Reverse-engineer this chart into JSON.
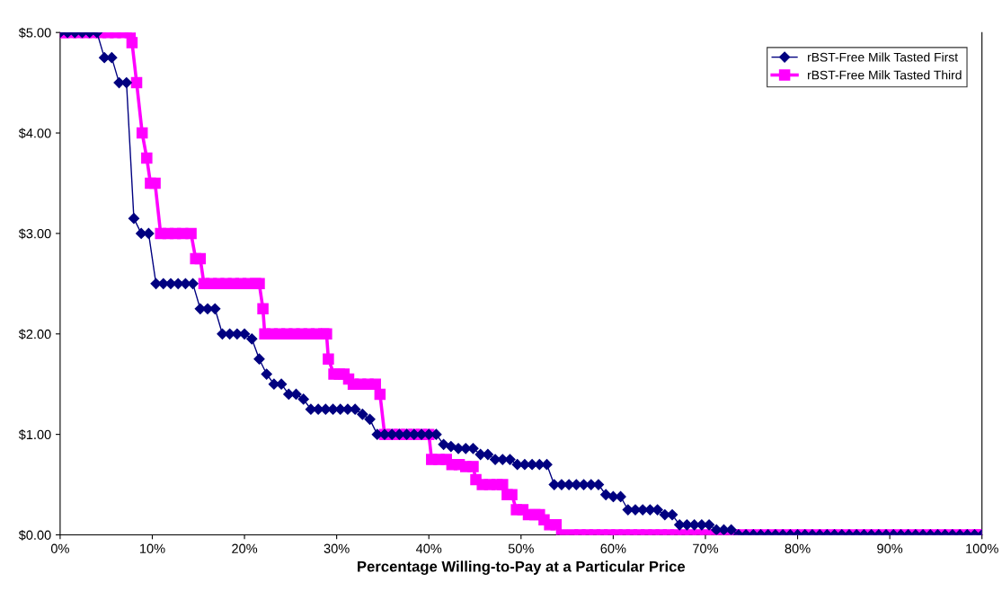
{
  "chart_data": {
    "type": "line",
    "xlabel": "Percentage Willing-to-Pay at a Particular Price",
    "xlim": [
      0,
      100
    ],
    "ylim": [
      0,
      5
    ],
    "xticks": [
      {
        "value": 0,
        "label": "0%"
      },
      {
        "value": 10,
        "label": "10%"
      },
      {
        "value": 20,
        "label": "20%"
      },
      {
        "value": 30,
        "label": "30%"
      },
      {
        "value": 40,
        "label": "40%"
      },
      {
        "value": 50,
        "label": "50%"
      },
      {
        "value": 60,
        "label": "60%"
      },
      {
        "value": 70,
        "label": "70%"
      },
      {
        "value": 80,
        "label": "80%"
      },
      {
        "value": 90,
        "label": "90%"
      },
      {
        "value": 100,
        "label": "100%"
      }
    ],
    "yticks": [
      {
        "value": 0,
        "label": "$0.00"
      },
      {
        "value": 1,
        "label": "$1.00"
      },
      {
        "value": 2,
        "label": "$2.00"
      },
      {
        "value": 3,
        "label": "$3.00"
      },
      {
        "value": 4,
        "label": "$4.00"
      },
      {
        "value": 5,
        "label": "$5.00"
      }
    ],
    "grid": false,
    "legend": "top right",
    "series": [
      {
        "name": "rBST-Free Milk Tasted First",
        "color": "#000080",
        "marker": "diamond",
        "x": [
          0,
          0.8,
          1.6,
          2.4,
          3.2,
          4,
          4.8,
          5.6,
          6.4,
          7.2,
          8,
          8.8,
          9.6,
          10.4,
          11.2,
          12,
          12.8,
          13.6,
          14.4,
          15.2,
          16,
          16.8,
          17.6,
          18.4,
          19.2,
          20,
          20.8,
          21.6,
          22.4,
          23.2,
          24,
          24.8,
          25.6,
          26.4,
          27.2,
          28,
          28.8,
          29.6,
          30.4,
          31.2,
          32,
          32.8,
          33.6,
          34.4,
          35.2,
          36,
          36.8,
          37.6,
          38.4,
          39.2,
          40,
          40.8,
          41.6,
          42.4,
          43.2,
          44,
          44.8,
          45.6,
          46.4,
          47.2,
          48,
          48.8,
          49.6,
          50.4,
          51.2,
          52,
          52.8,
          53.6,
          54.4,
          55.2,
          56,
          56.8,
          57.6,
          58.4,
          59.2,
          60,
          60.8,
          61.6,
          62.4,
          63.2,
          64,
          64.8,
          65.6,
          66.4,
          67.2,
          68,
          68.8,
          69.6,
          70.4,
          71.2,
          72,
          72.8,
          73.6,
          74.4,
          75.2,
          76,
          76.8,
          77.6,
          78.4,
          79.2,
          80,
          80.8,
          81.6,
          82.4,
          83.2,
          84,
          84.8,
          85.6,
          86.4,
          87.2,
          88,
          88.8,
          89.6,
          90.4,
          91.2,
          92,
          92.8,
          93.6,
          94.4,
          95.2,
          96,
          96.8,
          97.6,
          98.4,
          99.2,
          100
        ],
        "values": [
          5,
          5,
          5,
          5,
          5,
          5,
          4.75,
          4.75,
          4.5,
          4.5,
          3.15,
          3,
          3,
          2.5,
          2.5,
          2.5,
          2.5,
          2.5,
          2.5,
          2.25,
          2.25,
          2.25,
          2,
          2,
          2,
          2,
          1.95,
          1.75,
          1.6,
          1.5,
          1.5,
          1.4,
          1.4,
          1.35,
          1.25,
          1.25,
          1.25,
          1.25,
          1.25,
          1.25,
          1.25,
          1.2,
          1.15,
          1,
          1,
          1,
          1,
          1,
          1,
          1,
          1,
          1,
          0.9,
          0.88,
          0.86,
          0.86,
          0.86,
          0.8,
          0.8,
          0.75,
          0.75,
          0.75,
          0.7,
          0.7,
          0.7,
          0.7,
          0.7,
          0.5,
          0.5,
          0.5,
          0.5,
          0.5,
          0.5,
          0.5,
          0.4,
          0.38,
          0.38,
          0.25,
          0.25,
          0.25,
          0.25,
          0.25,
          0.2,
          0.2,
          0.1,
          0.1,
          0.1,
          0.1,
          0.1,
          0.05,
          0.05,
          0.05,
          0,
          0,
          0,
          0,
          0,
          0,
          0,
          0,
          0,
          0,
          0,
          0,
          0,
          0,
          0,
          0,
          0,
          0,
          0,
          0,
          0,
          0,
          0,
          0,
          0,
          0,
          0,
          0,
          0,
          0,
          0,
          0,
          0,
          0
        ]
      },
      {
        "name": "rBST-Free Milk Tasted Third",
        "color": "#ff00ff",
        "marker": "square",
        "x": [
          0,
          0.4,
          1.2,
          2,
          2.8,
          3.6,
          4.4,
          5.2,
          6,
          6.8,
          7.6,
          7.8,
          8.3,
          8.9,
          9.4,
          9.8,
          10.3,
          10.9,
          11.7,
          12.5,
          13.3,
          14.2,
          14.7,
          15.2,
          15.6,
          16.4,
          17.2,
          18,
          18.8,
          19.6,
          20.4,
          21.2,
          21.6,
          22,
          22.2,
          23,
          23.8,
          24.6,
          25.4,
          26.2,
          27,
          27.8,
          28.6,
          28.9,
          29.1,
          29.7,
          30.3,
          30.8,
          31.3,
          31.8,
          32.6,
          33.4,
          34.2,
          34.7,
          35.2,
          36,
          36.8,
          37.6,
          38.4,
          39.2,
          40,
          40.3,
          41.1,
          41.9,
          42.5,
          43.3,
          44,
          44.8,
          45.1,
          45.8,
          46.6,
          47.4,
          48,
          48.5,
          49,
          49.5,
          50.2,
          50.8,
          51.5,
          52,
          52.5,
          53.1,
          53.8,
          54.4,
          55.6,
          56.4,
          57.2,
          58,
          58.8,
          59.6,
          60.4,
          61.2,
          62,
          62.8,
          63.6,
          64.4,
          65.2,
          66,
          66.8,
          67.6,
          68.4,
          69.2,
          70,
          70.8,
          71.6,
          72.4,
          73.2,
          74,
          74.8,
          75.6,
          76.4,
          77.2,
          78,
          78.8,
          79.6,
          80.4,
          81.2,
          82,
          82.8,
          83.6,
          84.4,
          85.2,
          86,
          86.8,
          87.6,
          88.4,
          89.2,
          90,
          90.8,
          91.6,
          92.4,
          93.2,
          94,
          94.8,
          95.6,
          96.4,
          97.2,
          98,
          98.8,
          99.6,
          100
        ],
        "values": [
          5,
          5,
          5,
          5,
          5,
          5,
          5,
          5,
          5,
          5,
          5,
          4.9,
          4.5,
          4,
          3.75,
          3.5,
          3.5,
          3,
          3,
          3,
          3,
          3,
          2.75,
          2.75,
          2.5,
          2.5,
          2.5,
          2.5,
          2.5,
          2.5,
          2.5,
          2.5,
          2.5,
          2.25,
          2,
          2,
          2,
          2,
          2,
          2,
          2,
          2,
          2,
          2,
          1.75,
          1.6,
          1.6,
          1.6,
          1.55,
          1.5,
          1.5,
          1.5,
          1.5,
          1.4,
          1,
          1,
          1,
          1,
          1,
          1,
          1,
          0.75,
          0.75,
          0.75,
          0.7,
          0.7,
          0.68,
          0.68,
          0.55,
          0.5,
          0.5,
          0.5,
          0.5,
          0.4,
          0.4,
          0.25,
          0.25,
          0.2,
          0.2,
          0.2,
          0.15,
          0.1,
          0.1,
          0,
          0,
          0,
          0,
          0,
          0,
          0,
          0,
          0,
          0,
          0,
          0,
          0,
          0,
          0,
          0,
          0,
          0,
          0,
          0,
          0,
          0,
          0,
          0,
          0,
          0,
          0,
          0,
          0,
          0,
          0,
          0,
          0,
          0,
          0,
          0,
          0,
          0,
          0,
          0,
          0,
          0,
          0,
          0,
          0,
          0,
          0,
          0,
          0,
          0,
          0,
          0,
          0,
          0,
          0,
          0,
          0,
          0
        ]
      }
    ]
  }
}
